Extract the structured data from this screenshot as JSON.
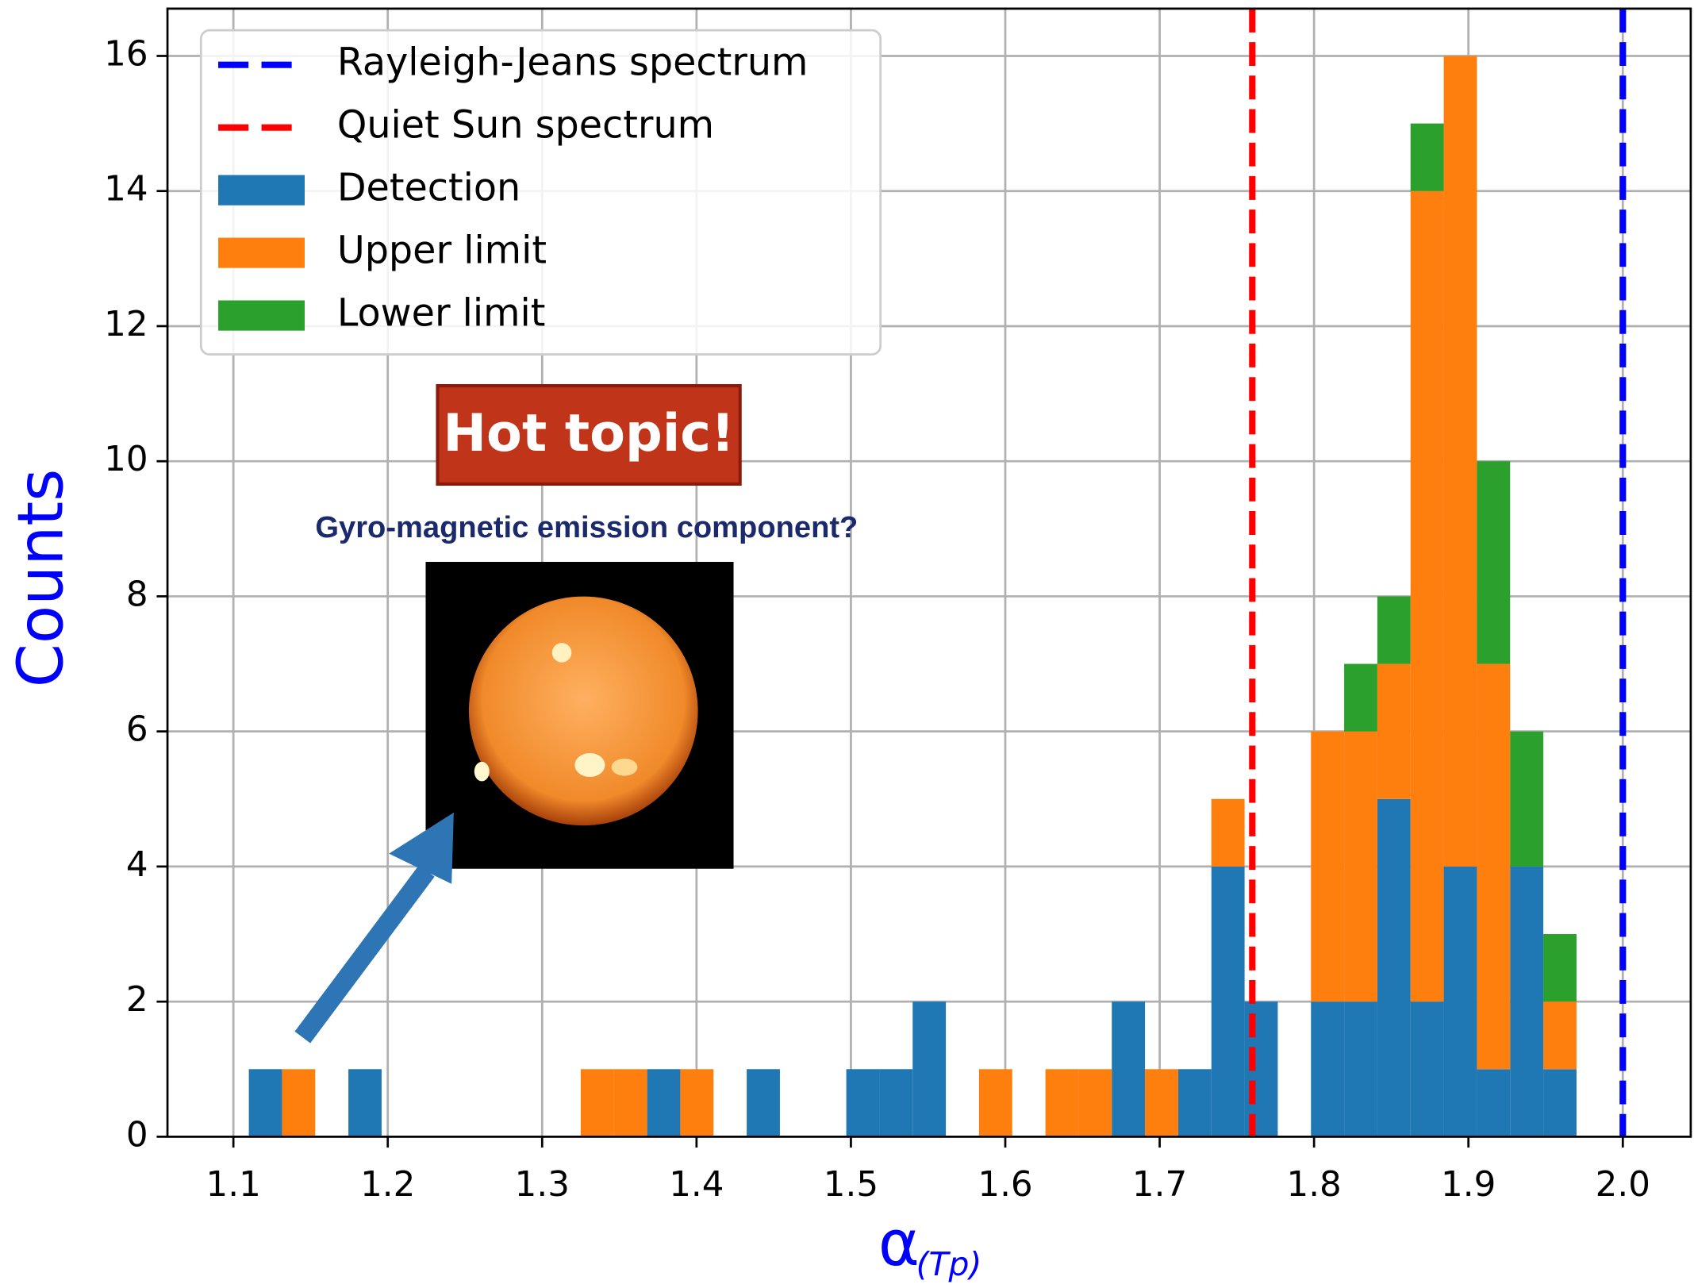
{
  "chart_data": {
    "type": "histogram",
    "xlabel": "α",
    "xlabel_sub": "(Tp)",
    "ylabel": "Counts",
    "bins": [
      1.11,
      1.1315,
      1.153,
      1.1745,
      1.196,
      1.2175,
      1.239,
      1.2605,
      1.282,
      1.3035,
      1.325,
      1.3465,
      1.368,
      1.3895,
      1.411,
      1.4325,
      1.454,
      1.4755,
      1.497,
      1.5185,
      1.54,
      1.5615,
      1.583,
      1.6045,
      1.626,
      1.6475,
      1.669,
      1.6905,
      1.712,
      1.7335,
      1.755,
      1.7765,
      1.798,
      1.8195,
      1.841,
      1.8625,
      1.884,
      1.9055,
      1.927,
      1.9485,
      1.97
    ],
    "series": [
      {
        "name": "Detection",
        "color": "#1f77b4",
        "values": [
          1,
          0,
          0,
          1,
          0,
          0,
          0,
          0,
          0,
          0,
          0,
          0,
          1,
          0,
          0,
          1,
          0,
          0,
          1,
          1,
          2,
          0,
          0,
          0,
          0,
          0,
          2,
          0,
          1,
          4,
          2,
          0,
          2,
          2,
          5,
          2,
          4,
          1,
          4,
          1
        ]
      },
      {
        "name": "Upper limit",
        "color": "#ff7f0e",
        "values": [
          0,
          1,
          0,
          0,
          0,
          0,
          0,
          0,
          0,
          0,
          1,
          1,
          0,
          1,
          0,
          0,
          0,
          0,
          0,
          0,
          0,
          0,
          1,
          0,
          1,
          1,
          0,
          1,
          0,
          1,
          0,
          0,
          4,
          4,
          2,
          12,
          12,
          6,
          0,
          1
        ]
      },
      {
        "name": "Lower limit",
        "color": "#2ca02c",
        "values": [
          0,
          0,
          0,
          0,
          0,
          0,
          0,
          0,
          0,
          0,
          0,
          0,
          0,
          0,
          0,
          0,
          0,
          0,
          0,
          0,
          0,
          0,
          0,
          0,
          0,
          0,
          0,
          0,
          0,
          0,
          0,
          0,
          0,
          1,
          1,
          1,
          0,
          3,
          2,
          1
        ]
      }
    ],
    "vlines": [
      {
        "name": "Rayleigh-Jeans spectrum",
        "color": "#0000ff",
        "value": 2.0
      },
      {
        "name": "Quiet Sun spectrum",
        "color": "#ff0000",
        "value": 1.76
      }
    ],
    "xlim": [
      1.0573,
      2.044
    ],
    "ylim": [
      0,
      16.7
    ],
    "xticks": [
      1.1,
      1.2,
      1.3,
      1.4,
      1.5,
      1.6,
      1.7,
      1.8,
      1.9,
      {
        "value": 2,
        "label": "2.0"
      }
    ],
    "yticks": [
      0,
      2,
      4,
      6,
      8,
      10,
      12,
      14,
      16
    ],
    "grid": true,
    "legend": "upper left",
    "annotations": {
      "badge": "Hot topic!",
      "caption": "Gyro-magnetic emission component?"
    }
  }
}
